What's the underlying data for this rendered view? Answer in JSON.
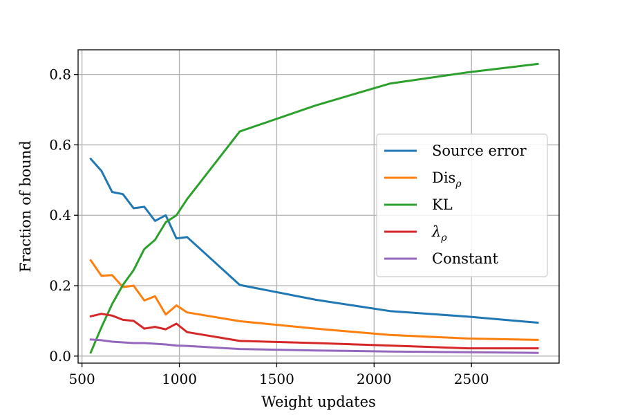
{
  "chart_data": {
    "type": "line",
    "title": "",
    "xlabel": "Weight updates",
    "ylabel": "Fraction of bound",
    "xlim": [
      480,
      2950
    ],
    "ylim": [
      -0.02,
      0.87
    ],
    "xticks": [
      500,
      1000,
      1500,
      2000,
      2500
    ],
    "yticks": [
      0.0,
      0.2,
      0.4,
      0.6,
      0.8
    ],
    "xtick_labels": [
      "500",
      "1000",
      "1500",
      "2000",
      "2500"
    ],
    "ytick_labels": [
      "0.0",
      "0.2",
      "0.4",
      "0.6",
      "0.8"
    ],
    "grid": true,
    "legend_position": "center-right",
    "series": [
      {
        "name": "Source error",
        "color": "#1f77b4",
        "x": [
          545,
          600,
          655,
          710,
          765,
          820,
          875,
          930,
          985,
          1040,
          1310,
          1700,
          2080,
          2480,
          2840
        ],
        "y": [
          0.56,
          0.526,
          0.466,
          0.46,
          0.42,
          0.424,
          0.384,
          0.4,
          0.334,
          0.338,
          0.202,
          0.16,
          0.128,
          0.112,
          0.095
        ]
      },
      {
        "name": "Dis",
        "name_sub": "ρ",
        "color": "#ff7f0e",
        "x": [
          545,
          600,
          655,
          710,
          765,
          820,
          875,
          930,
          985,
          1040,
          1310,
          1700,
          2080,
          2480,
          2840
        ],
        "y": [
          0.272,
          0.228,
          0.23,
          0.196,
          0.2,
          0.158,
          0.17,
          0.118,
          0.144,
          0.124,
          0.099,
          0.078,
          0.06,
          0.05,
          0.046
        ]
      },
      {
        "name": "KL",
        "color": "#2ca02c",
        "x": [
          545,
          600,
          655,
          710,
          765,
          820,
          875,
          930,
          985,
          1040,
          1310,
          1700,
          2080,
          2480,
          2840
        ],
        "y": [
          0.01,
          0.082,
          0.148,
          0.202,
          0.244,
          0.304,
          0.33,
          0.38,
          0.4,
          0.446,
          0.638,
          0.712,
          0.774,
          0.806,
          0.83
        ]
      },
      {
        "name": "λ",
        "name_sub": "ρ",
        "color": "#d62728",
        "x": [
          545,
          600,
          655,
          710,
          765,
          820,
          875,
          930,
          985,
          1040,
          1310,
          1700,
          2080,
          2480,
          2840
        ],
        "y": [
          0.113,
          0.12,
          0.115,
          0.103,
          0.1,
          0.078,
          0.083,
          0.076,
          0.092,
          0.068,
          0.043,
          0.037,
          0.03,
          0.022,
          0.022
        ]
      },
      {
        "name": "Constant",
        "color": "#9467bd",
        "x": [
          545,
          600,
          655,
          710,
          765,
          820,
          875,
          930,
          985,
          1040,
          1310,
          1700,
          2080,
          2480,
          2840
        ],
        "y": [
          0.047,
          0.045,
          0.041,
          0.039,
          0.037,
          0.037,
          0.035,
          0.033,
          0.03,
          0.029,
          0.02,
          0.016,
          0.013,
          0.011,
          0.009
        ]
      }
    ]
  }
}
